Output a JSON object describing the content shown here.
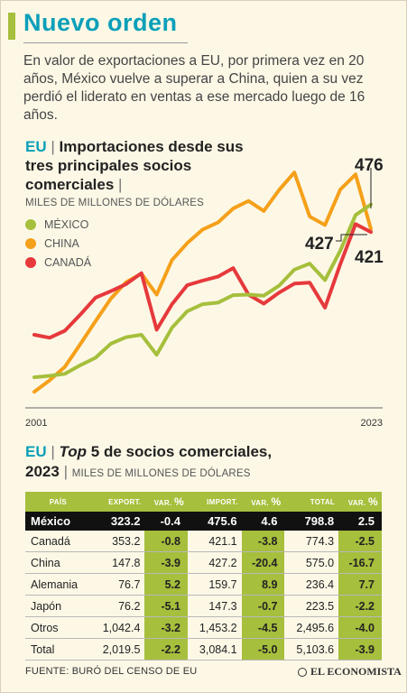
{
  "header": {
    "title": "Nuevo orden",
    "intro": "En valor de exportaciones a EU, por primera vez en 20 años, México vuelve a superar a China, quien a su vez perdió el liderato en ventas a ese mercado luego de 16 años."
  },
  "chart_section": {
    "title_prefix": "EU",
    "title_sep": "|",
    "title_text": "Importaciones desde sus tres principales socios comerciales",
    "title_end": "|",
    "units": "MILES DE MILLONES DE DÓLARES"
  },
  "chart_data": {
    "type": "line",
    "x": [
      2001,
      2002,
      2003,
      2004,
      2005,
      2006,
      2007,
      2008,
      2009,
      2010,
      2011,
      2012,
      2013,
      2014,
      2015,
      2016,
      2017,
      2018,
      2019,
      2020,
      2021,
      2022,
      2023
    ],
    "x_tick_labels": [
      "2001",
      "2023"
    ],
    "ylim": [
      70,
      560
    ],
    "series": [
      {
        "name": "MÉXICO",
        "color": "#a6bf3c",
        "values": [
          131,
          134,
          138,
          155,
          170,
          198,
          211,
          216,
          176,
          230,
          263,
          277,
          280,
          295,
          296,
          294,
          314,
          346,
          358,
          325,
          384,
          455,
          476
        ]
      },
      {
        "name": "CHINA",
        "color": "#f5a01a",
        "values": [
          102,
          125,
          152,
          197,
          243,
          288,
          321,
          338,
          296,
          365,
          399,
          426,
          440,
          468,
          483,
          463,
          505,
          540,
          452,
          435,
          506,
          536,
          427
        ]
      },
      {
        "name": "CANADÁ",
        "color": "#e6393c",
        "values": [
          216,
          210,
          224,
          256,
          290,
          303,
          317,
          339,
          226,
          277,
          315,
          324,
          332,
          349,
          296,
          278,
          300,
          318,
          320,
          270,
          357,
          437,
          421
        ]
      }
    ],
    "annotations": [
      "476",
      "427",
      "421"
    ]
  },
  "table_section": {
    "title_prefix": "EU",
    "title_sep": "|",
    "title_italic": "Top",
    "title_rest": "5 de socios comerciales,",
    "title_year": "2023",
    "title_sep2": "|",
    "units": "MILES DE MILLONES DE DÓLARES"
  },
  "table": {
    "headers": [
      "PAÍS",
      "EXPORT.",
      "VAR. %",
      "IMPORT.",
      "VAR. %",
      "TOTAL",
      "VAR. %"
    ],
    "rows": [
      [
        "México",
        "323.2",
        "-0.4",
        "475.6",
        "4.6",
        "798.8",
        "2.5"
      ],
      [
        "Canadá",
        "353.2",
        "-0.8",
        "421.1",
        "-3.8",
        "774.3",
        "-2.5"
      ],
      [
        "China",
        "147.8",
        "-3.9",
        "427.2",
        "-20.4",
        "575.0",
        "-16.7"
      ],
      [
        "Alemania",
        "76.7",
        "5.2",
        "159.7",
        "8.9",
        "236.4",
        "7.7"
      ],
      [
        "Japón",
        "76.2",
        "-5.1",
        "147.3",
        "-0.7",
        "223.5",
        "-2.2"
      ],
      [
        "Otros",
        "1,042.4",
        "-3.2",
        "1,453.2",
        "-4.5",
        "2,495.6",
        "-4.0"
      ],
      [
        "Total",
        "2,019.5",
        "-2.2",
        "3,084.1",
        "-5.0",
        "5,103.6",
        "-3.9"
      ]
    ]
  },
  "footer": {
    "source": "FUENTE: BURÓ DEL CENSO DE EU",
    "logo": "EL ECONOMISTA"
  }
}
